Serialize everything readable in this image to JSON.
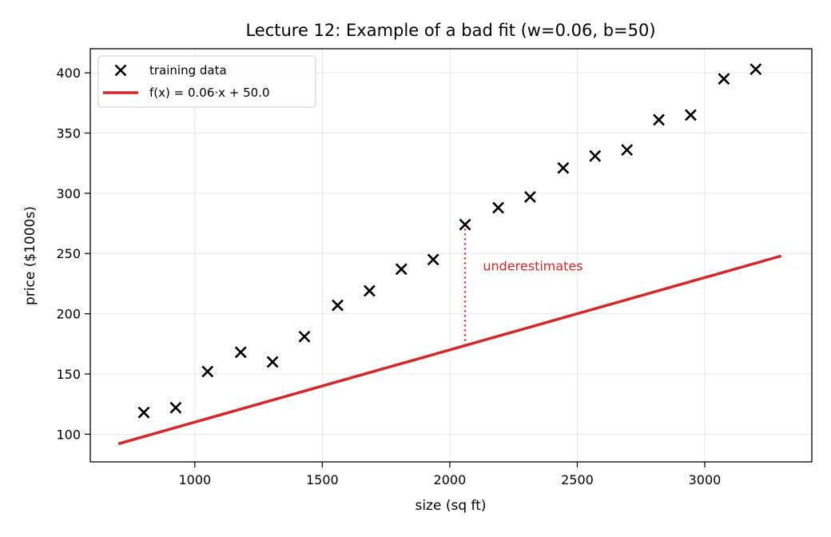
{
  "chart_data": {
    "type": "scatter",
    "title": "Lecture 12: Example of a bad fit (w=0.06, b=50)",
    "xlabel": "size (sq ft)",
    "ylabel": "price ($1000s)",
    "xlim": [
      590,
      3420
    ],
    "ylim": [
      77,
      420
    ],
    "xticks": [
      1000,
      1500,
      2000,
      2500,
      3000
    ],
    "yticks": [
      100,
      150,
      200,
      250,
      300,
      350,
      400
    ],
    "grid": true,
    "legend_position": "top-left",
    "series": [
      {
        "name": "training data",
        "kind": "scatter",
        "marker": "x",
        "color": "#000000",
        "points": [
          {
            "x": 800,
            "y": 118
          },
          {
            "x": 925,
            "y": 122
          },
          {
            "x": 1050,
            "y": 152
          },
          {
            "x": 1180,
            "y": 168
          },
          {
            "x": 1305,
            "y": 160
          },
          {
            "x": 1430,
            "y": 181
          },
          {
            "x": 1560,
            "y": 207
          },
          {
            "x": 1685,
            "y": 219
          },
          {
            "x": 1810,
            "y": 237
          },
          {
            "x": 1935,
            "y": 245
          },
          {
            "x": 2060,
            "y": 274
          },
          {
            "x": 2190,
            "y": 288
          },
          {
            "x": 2315,
            "y": 297
          },
          {
            "x": 2445,
            "y": 321
          },
          {
            "x": 2570,
            "y": 331
          },
          {
            "x": 2695,
            "y": 336
          },
          {
            "x": 2820,
            "y": 361
          },
          {
            "x": 2945,
            "y": 365
          },
          {
            "x": 3075,
            "y": 395
          },
          {
            "x": 3200,
            "y": 403
          }
        ]
      },
      {
        "name": "f(x) = 0.06·x + 50.0",
        "kind": "line",
        "color": "#d62728",
        "points": [
          {
            "x": 700,
            "y": 92
          },
          {
            "x": 3300,
            "y": 248
          }
        ]
      }
    ],
    "annotation": {
      "text": "underestimates",
      "color": "#d62728",
      "line_x": 2060,
      "line_y": [
        173.6,
        274
      ],
      "text_x": 2130,
      "text_y": 240
    }
  }
}
